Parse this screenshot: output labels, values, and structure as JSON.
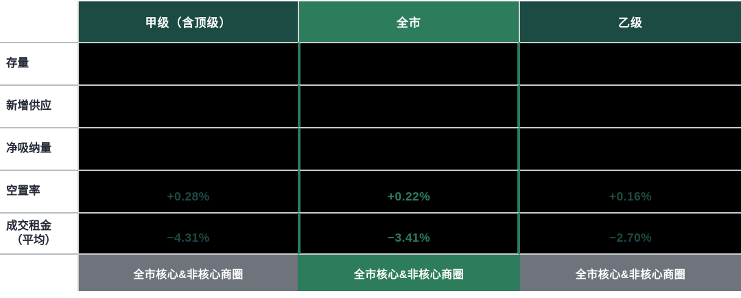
{
  "table": {
    "columns": [
      {
        "label": "甲级（含顶级）",
        "theme": "dark-green"
      },
      {
        "label": "全市",
        "theme": "bright-green"
      },
      {
        "label": "乙级",
        "theme": "dark-green"
      }
    ],
    "rows": [
      {
        "label": "存量",
        "values": [
          "",
          "",
          ""
        ]
      },
      {
        "label": "新增供应",
        "values": [
          "",
          "",
          ""
        ]
      },
      {
        "label": "净吸纳量",
        "values": [
          "",
          "",
          ""
        ]
      },
      {
        "label": "空置率",
        "values": [
          "+0.28%",
          "+0.22%",
          "+0.16%"
        ]
      },
      {
        "label": "成交租金",
        "label_line2": "（平均）",
        "values": [
          "−4.31%",
          "−3.41%",
          "−2.70%"
        ]
      }
    ],
    "footer": [
      "全市核心&非核心商圈",
      "全市核心&非核心商圈",
      "全市核心&非核心商圈"
    ]
  },
  "chart_data": {
    "type": "table",
    "columns": [
      "甲级（含顶级）",
      "全市",
      "乙级"
    ],
    "rows": [
      {
        "label": "存量",
        "values": [
          null,
          null,
          null
        ]
      },
      {
        "label": "新增供应",
        "values": [
          null,
          null,
          null
        ]
      },
      {
        "label": "净吸纳量",
        "values": [
          null,
          null,
          null
        ]
      },
      {
        "label": "空置率",
        "values": [
          "+0.28%",
          "+0.22%",
          "+0.16%"
        ]
      },
      {
        "label": "成交租金（平均）",
        "values": [
          "−4.31%",
          "−3.41%",
          "−2.70%"
        ]
      }
    ],
    "footer_row": [
      "全市核心&非核心商圈",
      "全市核心&非核心商圈",
      "全市核心&非核心商圈"
    ]
  },
  "colors": {
    "dark_green": "#1C4B43",
    "bright_green": "#2D7C5C",
    "footer_gray": "#6F737B",
    "cell_black": "#000000",
    "grid_line": "#C9CCD0",
    "label_line": "#B9BDC3",
    "label_text": "#232936",
    "header_text": "#FFFFFF"
  }
}
